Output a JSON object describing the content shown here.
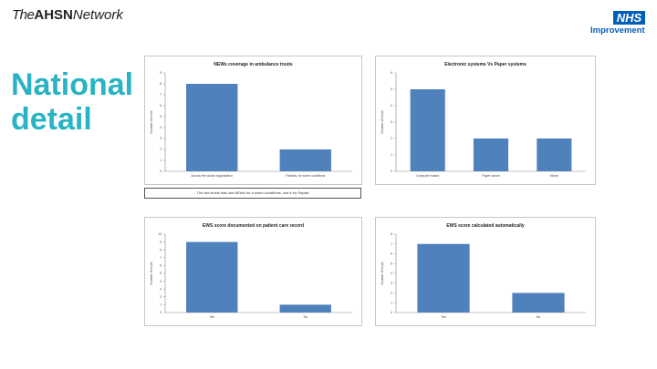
{
  "header": {
    "brand_the": "The",
    "brand_ahsn": "AHSN",
    "brand_network": "Network",
    "nhs_logo": "NHS",
    "nhs_sub": "Improvement"
  },
  "headline": {
    "line1": "National",
    "line2": "detail"
  },
  "note": "The two trusts that use NEWs for a some conditions, use it for Sepsis",
  "colors": {
    "bar": "#4f81bd",
    "headline": "#2ab3c4",
    "nhs_blue": "#005eb8"
  },
  "chart_data": [
    {
      "type": "bar",
      "title": "NEWs coverage in ambulance trusts",
      "ylabel": "Number of trusts",
      "categories": [
        "Across the whole organisation",
        "Partially, for some conditions"
      ],
      "values": [
        8,
        2
      ],
      "ylim": [
        0,
        9
      ],
      "yticks": [
        0,
        1,
        2,
        3,
        4,
        5,
        6,
        7,
        8,
        9
      ],
      "grid": false
    },
    {
      "type": "bar",
      "title": "Electronic systems Vs Paper systems",
      "ylabel": "Number of trusts",
      "categories": [
        "Computer based",
        "Paper based",
        "Mixed"
      ],
      "values": [
        5,
        2,
        2
      ],
      "ylim": [
        0,
        6
      ],
      "yticks": [
        0,
        1,
        2,
        3,
        4,
        5,
        6
      ],
      "grid": false
    },
    {
      "type": "bar",
      "title": "EWS score documented on patient care record",
      "ylabel": "Number of trusts",
      "categories": [
        "Yes",
        "No"
      ],
      "values": [
        9,
        1
      ],
      "ylim": [
        0,
        10
      ],
      "yticks": [
        0,
        1,
        2,
        3,
        4,
        5,
        6,
        7,
        8,
        9,
        10
      ],
      "grid": false
    },
    {
      "type": "bar",
      "title": "EWS score calculated automatically",
      "ylabel": "Number of trusts",
      "categories": [
        "Yes",
        "No"
      ],
      "values": [
        7,
        2
      ],
      "ylim": [
        0,
        8
      ],
      "yticks": [
        0,
        1,
        2,
        3,
        4,
        5,
        6,
        7,
        8
      ],
      "grid": false
    }
  ]
}
